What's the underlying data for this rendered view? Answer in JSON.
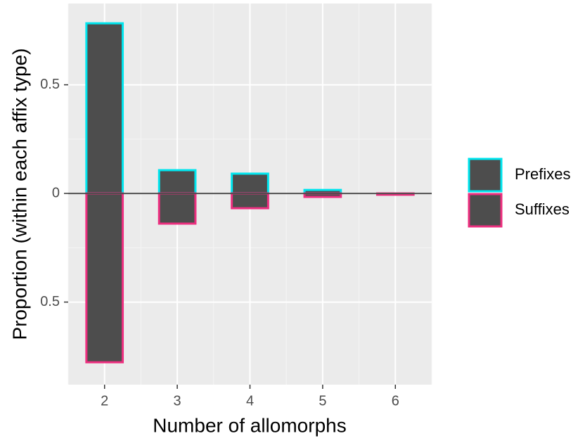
{
  "chart_data": {
    "type": "bar",
    "x_label": "Number of allomorphs",
    "y_label": "Proportion (within each affix type)",
    "categories": [
      "2",
      "3",
      "4",
      "5",
      "6"
    ],
    "series": [
      {
        "name": "Prefixes",
        "color": "#00e5ee",
        "values": [
          0.783,
          0.107,
          0.091,
          0.016,
          0
        ]
      },
      {
        "name": "Suffixes",
        "color": "#ec2f7f",
        "values": [
          -0.777,
          -0.139,
          -0.068,
          -0.016,
          -0.006
        ]
      }
    ],
    "bar_fill": "#4d4d4d",
    "ylim": [
      -0.88,
      0.874
    ],
    "yticks": [
      {
        "value": -0.5,
        "label": "0.5"
      },
      0,
      0.5
    ],
    "grid": true,
    "legend": "right"
  }
}
